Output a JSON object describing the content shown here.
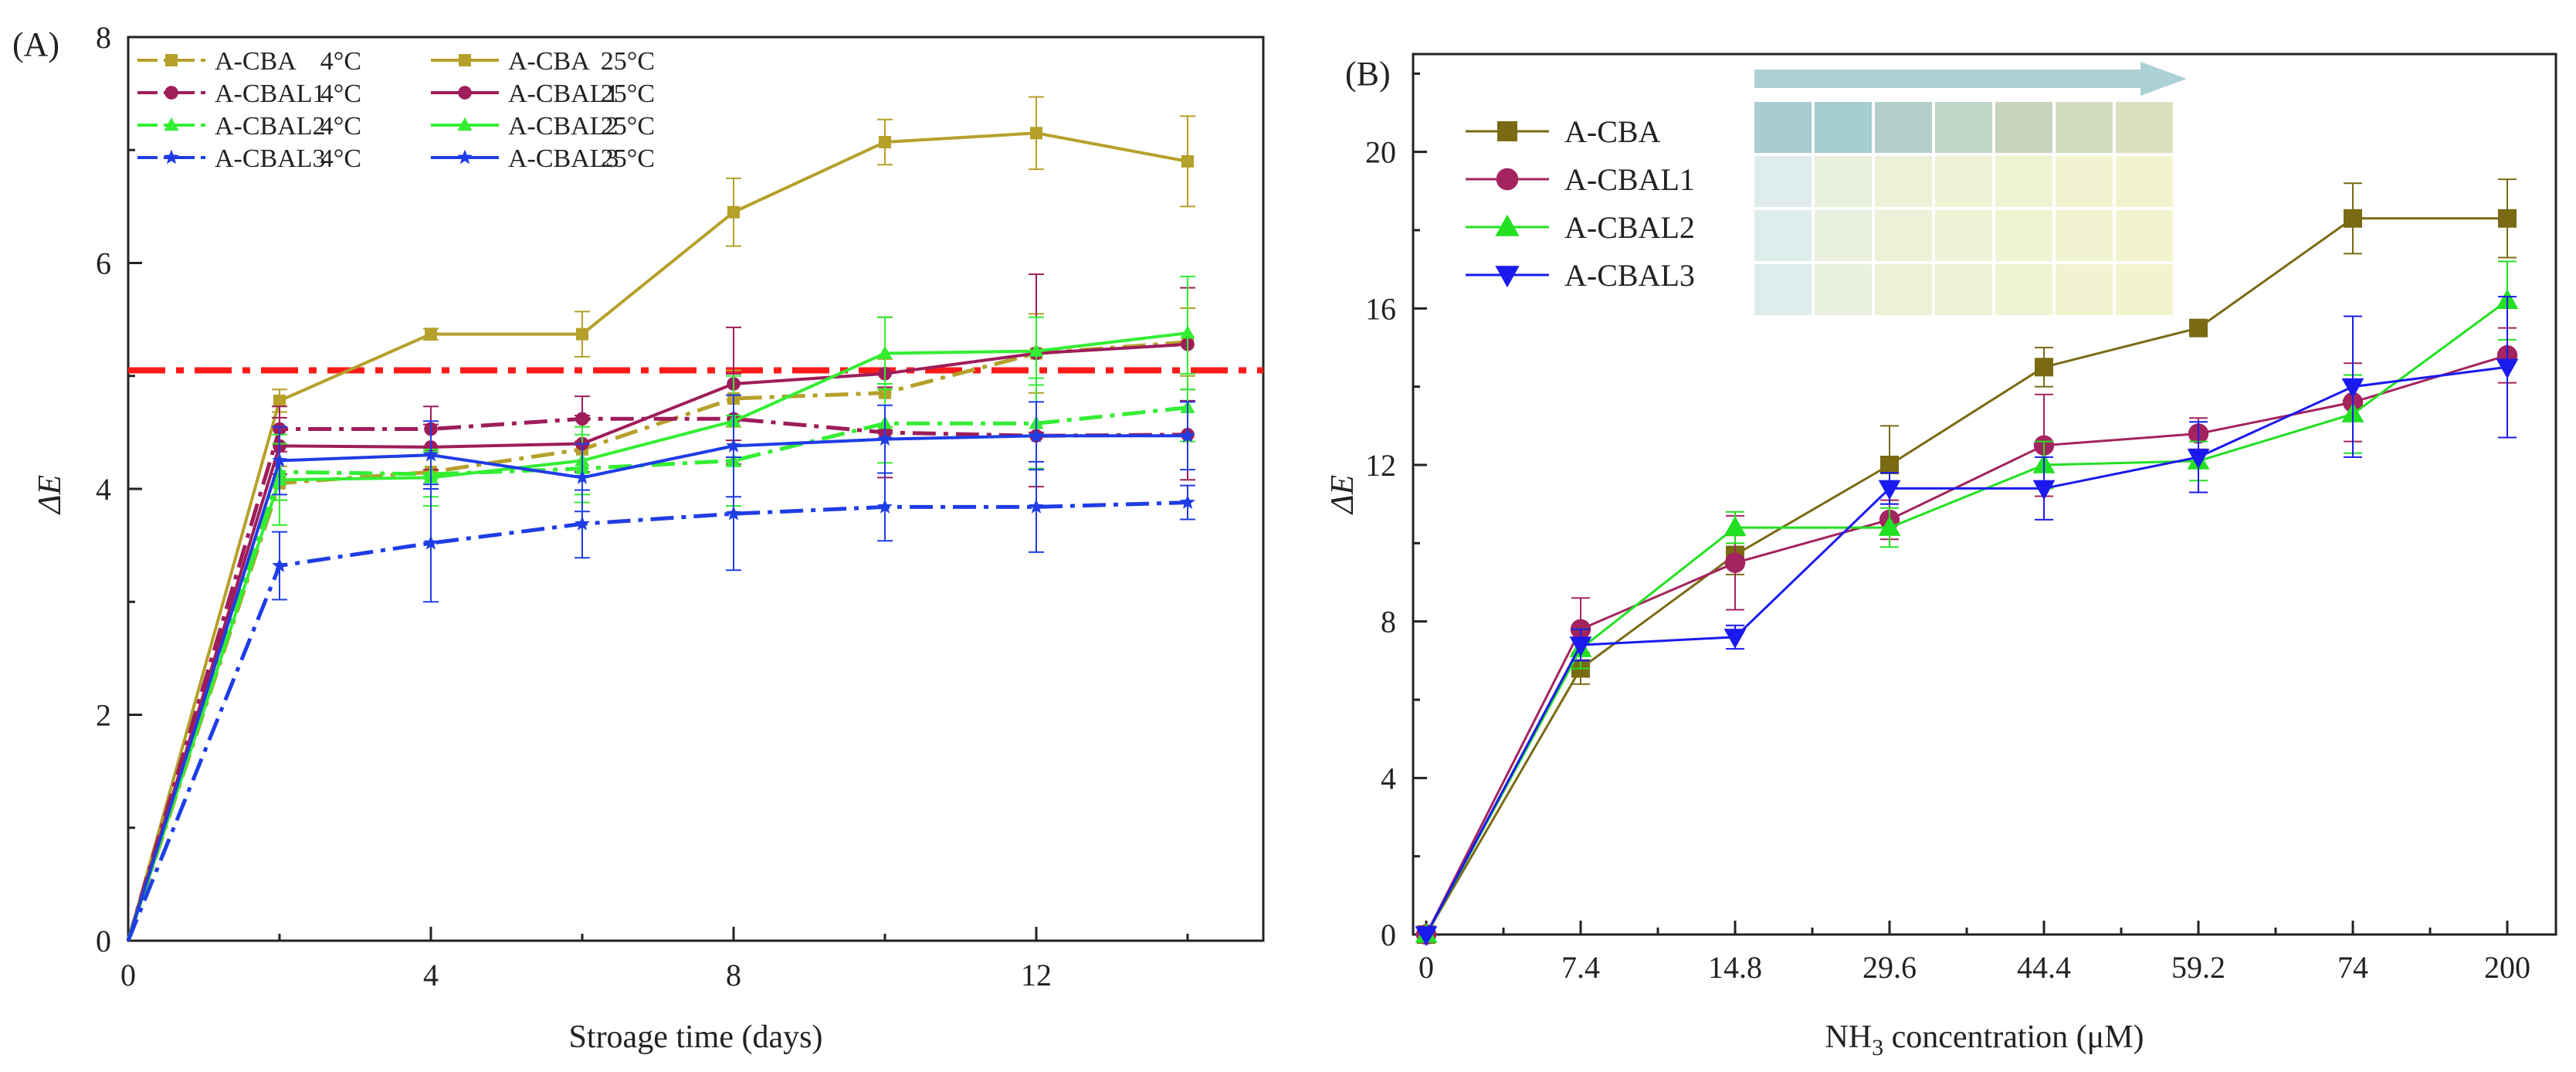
{
  "chart_data": [
    {
      "panel_label": "(A)",
      "type": "line",
      "xlabel": "Stroage time (days)",
      "ylabel": "ΔE",
      "xlim": [
        0,
        15
      ],
      "ylim": [
        0,
        8
      ],
      "xticks": [
        0,
        4,
        8,
        12
      ],
      "yticks": [
        0,
        2,
        4,
        6,
        8
      ],
      "reference_line": {
        "y": 5.05,
        "color": "#ff1a1a",
        "style": "dash-dot"
      },
      "legend_placement": "top-left",
      "x": [
        0,
        2,
        4,
        6,
        8,
        10,
        12,
        14
      ],
      "series": [
        {
          "name": "A-CBA",
          "temp": "4°C",
          "color": "#b5a02a",
          "dash": "dashdot",
          "marker": "square",
          "values": [
            0,
            4.05,
            4.15,
            4.35,
            4.8,
            4.85,
            5.2,
            5.3
          ],
          "errors": [
            0,
            0.15,
            0.15,
            0.2,
            0.25,
            0.3,
            0.35,
            0.3
          ]
        },
        {
          "name": "A-CBA",
          "temp": "25°C",
          "color": "#b5a02a",
          "dash": "solid",
          "marker": "square",
          "values": [
            0,
            4.78,
            5.37,
            5.37,
            6.45,
            7.07,
            7.15,
            6.9
          ],
          "errors": [
            0,
            0.1,
            0.05,
            0.2,
            0.3,
            0.2,
            0.32,
            0.4
          ]
        },
        {
          "name": "A-CBAL1",
          "temp": "4°C",
          "color": "#9e1d5a",
          "dash": "dashdot",
          "marker": "circle",
          "values": [
            0,
            4.53,
            4.53,
            4.62,
            4.62,
            4.5,
            4.47,
            4.48
          ],
          "errors": [
            0,
            0.2,
            0.2,
            0.2,
            0.4,
            0.4,
            0.45,
            0.4
          ]
        },
        {
          "name": "A-CBAL1",
          "temp": "25°C",
          "color": "#9e1d5a",
          "dash": "solid",
          "marker": "circle",
          "values": [
            0,
            4.38,
            4.37,
            4.4,
            4.93,
            5.02,
            5.2,
            5.28
          ],
          "errors": [
            0,
            0.25,
            0.2,
            0.25,
            0.5,
            0.5,
            0.7,
            0.5
          ]
        },
        {
          "name": "A-CBAL2",
          "temp": "4°C",
          "color": "#33ee33",
          "dash": "dashdot",
          "marker": "triangle",
          "values": [
            0,
            4.15,
            4.13,
            4.18,
            4.25,
            4.58,
            4.58,
            4.72
          ],
          "errors": [
            0,
            0.25,
            0.2,
            0.3,
            0.4,
            0.35,
            0.4,
            0.3
          ]
        },
        {
          "name": "A-CBAL2",
          "temp": "25°C",
          "color": "#33ee33",
          "dash": "solid",
          "marker": "triangle",
          "values": [
            0,
            4.08,
            4.1,
            4.25,
            4.6,
            5.2,
            5.22,
            5.38
          ],
          "errors": [
            0,
            0.4,
            0.25,
            0.3,
            0.4,
            0.32,
            0.3,
            0.5
          ]
        },
        {
          "name": "A-CBAL3",
          "temp": "4°C",
          "color": "#1e3de6",
          "dash": "dashdot",
          "marker": "star",
          "values": [
            0,
            3.32,
            3.52,
            3.69,
            3.78,
            3.84,
            3.84,
            3.88
          ],
          "errors": [
            0,
            0.3,
            0.52,
            0.3,
            0.5,
            0.3,
            0.4,
            0.15
          ]
        },
        {
          "name": "A-CBAL3",
          "temp": "25°C",
          "color": "#1e3de6",
          "dash": "solid",
          "marker": "star",
          "values": [
            0,
            4.25,
            4.3,
            4.1,
            4.38,
            4.44,
            4.47,
            4.47
          ],
          "errors": [
            0,
            0.3,
            0.3,
            0.3,
            0.45,
            0.3,
            0.3,
            0.3
          ]
        }
      ]
    },
    {
      "panel_label": "(B)",
      "type": "line",
      "xlabel_main": "NH",
      "xlabel_sub": "3",
      "xlabel_rest": " concentration (μM)",
      "ylabel": "ΔE",
      "categories": [
        "0",
        "7.4",
        "14.8",
        "29.6",
        "44.4",
        "59.2",
        "74",
        "200"
      ],
      "ylim": [
        0,
        22.5
      ],
      "yticks": [
        0,
        4,
        8,
        12,
        16,
        20
      ],
      "legend_placement": "top-left",
      "series": [
        {
          "name": "A-CBA",
          "color": "#7a6a14",
          "marker": "square",
          "values": [
            0,
            6.8,
            9.7,
            12.0,
            14.5,
            15.5,
            18.3,
            18.3
          ],
          "errors": [
            0,
            0.4,
            0.5,
            1.0,
            0.5,
            0.15,
            0.9,
            1.0
          ]
        },
        {
          "name": "A-CBAL1",
          "color": "#a3245e",
          "marker": "circle",
          "values": [
            0,
            7.8,
            9.5,
            10.6,
            12.5,
            12.8,
            13.6,
            14.8
          ],
          "errors": [
            0,
            0.8,
            1.2,
            0.5,
            1.3,
            0.4,
            1.0,
            0.7
          ]
        },
        {
          "name": "A-CBAL2",
          "color": "#22e022",
          "marker": "triangle",
          "values": [
            0,
            7.3,
            10.4,
            10.4,
            12.0,
            12.1,
            13.3,
            16.2
          ],
          "errors": [
            0,
            0.5,
            0.4,
            0.5,
            0.6,
            0.5,
            1.0,
            1.0
          ]
        },
        {
          "name": "A-CBAL3",
          "color": "#1a1aef",
          "marker": "triangle-down",
          "values": [
            0,
            7.4,
            7.6,
            11.4,
            11.4,
            12.2,
            14.0,
            14.5
          ],
          "errors": [
            0,
            0.4,
            0.3,
            0.4,
            0.8,
            0.9,
            1.8,
            1.8
          ]
        }
      ],
      "inset": {
        "description": "color chart photo",
        "row1_colors": [
          "#a9ccd3",
          "#a4cdd0",
          "#b3d0cb",
          "#bfd5c6",
          "#c6d4bc",
          "#d1dcc1",
          "#dbdfc0"
        ],
        "row_colors": [
          "#dfecec",
          "#eaf0de",
          "#ecf1d7",
          "#eff2d4",
          "#f0f3d1",
          "#f2f3d1",
          "#f3f4cf"
        ],
        "arrow_color": "#9cc8cf"
      }
    }
  ]
}
